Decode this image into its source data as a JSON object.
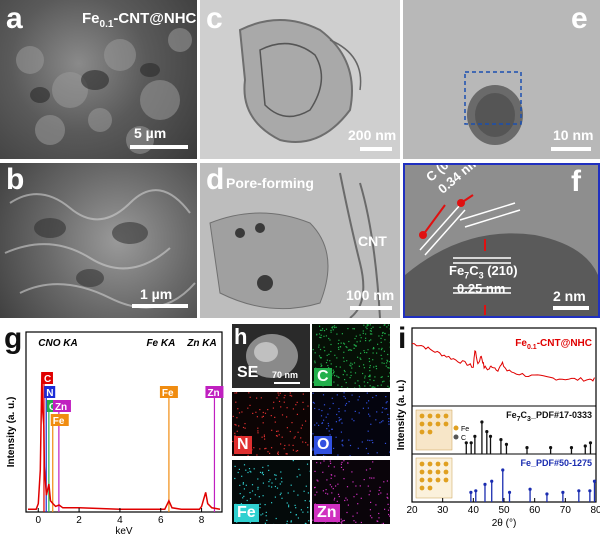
{
  "panels": {
    "a": {
      "label": "a",
      "title": "Fe0.1-CNT@NHC",
      "title_main": "Fe",
      "title_sub": "0.1",
      "title_rest": "-CNT@NHC",
      "scale": "5 µm"
    },
    "b": {
      "label": "b",
      "scale": "1 µm"
    },
    "c": {
      "label": "c",
      "scale": "200 nm"
    },
    "d": {
      "label": "d",
      "annot_pore": "Pore-forming",
      "annot_cnt": "CNT",
      "scale": "100 nm"
    },
    "e": {
      "label": "e",
      "scale": "10 nm"
    },
    "f": {
      "label": "f",
      "c002": "C (002)",
      "c002_d": "0.34 nm",
      "fe7c3_main": "Fe",
      "fe7c3_sub1": "7",
      "fe7c3_mid": "C",
      "fe7c3_sub2": "3",
      "fe7c3_rest": " (210)",
      "fe7c3_d": "0.25 nm",
      "scale": "2 nm"
    },
    "h": {
      "label": "h",
      "se": "SE",
      "scale": "70 nm",
      "maps": [
        {
          "name": "C",
          "color": "#22b04b",
          "bg": "#061006",
          "label_color": "#ffffff"
        },
        {
          "name": "N",
          "color": "#e03030",
          "bg": "#0c0404",
          "label_color": "#ffffff"
        },
        {
          "name": "O",
          "color": "#3050e0",
          "bg": "#04040e",
          "label_color": "#ffffff"
        },
        {
          "name": "Fe",
          "color": "#30d0d0",
          "bg": "#040a0a",
          "label_color": "#ffffff"
        },
        {
          "name": "Zn",
          "color": "#d030c0",
          "bg": "#0a040a",
          "label_color": "#ffffff"
        }
      ]
    }
  },
  "chart_data": [
    {
      "type": "line",
      "panel": "g",
      "title": "",
      "xlabel": "keV",
      "ylabel": "Intensity (a. u.)",
      "xlim": [
        -0.6,
        9.0
      ],
      "xticks": [
        0,
        2,
        4,
        6,
        8
      ],
      "series": [
        {
          "color": "#e00000",
          "points": [
            [
              -0.5,
              0.02
            ],
            [
              -0.1,
              0.02
            ],
            [
              0.0,
              0.06
            ],
            [
              0.1,
              0.3
            ],
            [
              0.18,
              1.0
            ],
            [
              0.22,
              0.72
            ],
            [
              0.27,
              0.62
            ],
            [
              0.3,
              0.32
            ],
            [
              0.4,
              0.12
            ],
            [
              0.52,
              0.2
            ],
            [
              0.6,
              0.08
            ],
            [
              0.72,
              0.06
            ],
            [
              0.85,
              0.04
            ],
            [
              1.02,
              0.05
            ],
            [
              1.2,
              0.03
            ],
            [
              2,
              0.03
            ],
            [
              4,
              0.02
            ],
            [
              6.2,
              0.02
            ],
            [
              6.4,
              0.08
            ],
            [
              6.55,
              0.03
            ],
            [
              7.0,
              0.02
            ],
            [
              7.9,
              0.02
            ],
            [
              8.0,
              0.04
            ],
            [
              8.1,
              0.09
            ],
            [
              8.2,
              0.14
            ],
            [
              8.3,
              0.06
            ],
            [
              8.5,
              0.03
            ],
            [
              8.9,
              0.02
            ]
          ]
        }
      ],
      "header_labels": [
        "CNO KA",
        "Fe KA",
        "Zn KA"
      ],
      "element_lines": [
        {
          "el": "C",
          "kev": 0.28,
          "color": "#e00000",
          "box_color": "#e00000",
          "text_color": "#ffffff"
        },
        {
          "el": "N",
          "kev": 0.39,
          "color": "#1a2cd8",
          "box_color": "#1a2cd8",
          "text_color": "#ffffff"
        },
        {
          "el": "O",
          "kev": 0.52,
          "color": "#22b04b",
          "box_color": "#22b04b",
          "text_color": "#ffffff"
        },
        {
          "el": "Zn",
          "kev": 1.01,
          "color": "#c020c0",
          "box_color": "#c020c0",
          "text_color": "#ffffff"
        },
        {
          "el": "Fe",
          "kev": 0.71,
          "color": "#f08c10",
          "box_color": "#f08c10",
          "text_color": "#ffffff"
        },
        {
          "el": "Fe",
          "kev": 6.4,
          "color": "#f08c10",
          "box_color": "#f08c10",
          "text_color": "#ffffff"
        },
        {
          "el": "Zn",
          "kev": 8.63,
          "color": "#c020c0",
          "box_color": "#c020c0",
          "text_color": "#ffffff"
        }
      ]
    },
    {
      "type": "line",
      "panel": "i",
      "title": "",
      "xlabel": "2θ (°)",
      "ylabel": "Intensity (a. u.)",
      "xlim": [
        20,
        80
      ],
      "xticks": [
        20,
        30,
        40,
        50,
        60,
        70,
        80
      ],
      "series": [
        {
          "name": "Fe0.1-CNT@NHC",
          "name_main": "Fe",
          "name_sub": "0.1",
          "name_rest": "-CNT@NHC",
          "color": "#e00000",
          "points": [
            [
              20,
              0.88
            ],
            [
              23,
              0.85
            ],
            [
              26,
              0.78
            ],
            [
              29,
              0.72
            ],
            [
              32,
              0.66
            ],
            [
              35,
              0.6
            ],
            [
              38,
              0.55
            ],
            [
              40,
              0.5
            ],
            [
              40.5,
              0.78
            ],
            [
              41.5,
              0.55
            ],
            [
              42.6,
              0.68
            ],
            [
              43.5,
              0.5
            ],
            [
              45,
              0.46
            ],
            [
              46,
              0.52
            ],
            [
              48,
              0.46
            ],
            [
              49.5,
              0.55
            ],
            [
              51,
              0.44
            ],
            [
              54,
              0.4
            ],
            [
              58,
              0.36
            ],
            [
              62,
              0.34
            ],
            [
              66,
              0.32
            ],
            [
              70,
              0.31
            ],
            [
              74,
              0.3
            ],
            [
              78,
              0.3
            ],
            [
              80,
              0.3
            ]
          ]
        }
      ],
      "references": [
        {
          "name": "Fe7C3_PDF#17-0333",
          "name_parts": [
            "Fe",
            "7",
            "C",
            "3",
            "_PDF#17-0333"
          ],
          "color": "#111111",
          "peaks": [
            [
              37.7,
              0.35
            ],
            [
              39.3,
              0.35
            ],
            [
              40.5,
              0.55
            ],
            [
              42.8,
              1.0
            ],
            [
              44.4,
              0.7
            ],
            [
              45.6,
              0.55
            ],
            [
              49.0,
              0.45
            ],
            [
              50.8,
              0.3
            ],
            [
              57.5,
              0.2
            ],
            [
              65.2,
              0.2
            ],
            [
              72.0,
              0.2
            ],
            [
              76.5,
              0.25
            ],
            [
              78.2,
              0.35
            ]
          ]
        },
        {
          "name": "Fe_PDF#50-1275",
          "color": "#1a2cb0",
          "peaks": [
            [
              39.2,
              0.3
            ],
            [
              40.8,
              0.35
            ],
            [
              43.8,
              0.55
            ],
            [
              46.0,
              0.65
            ],
            [
              49.6,
              1.0
            ],
            [
              51.8,
              0.3
            ],
            [
              58.5,
              0.4
            ],
            [
              64.0,
              0.25
            ],
            [
              69.2,
              0.3
            ],
            [
              74.4,
              0.35
            ],
            [
              78.0,
              0.35
            ],
            [
              79.5,
              0.65
            ]
          ]
        }
      ],
      "legend_items": [
        "Fe",
        "C"
      ]
    }
  ]
}
